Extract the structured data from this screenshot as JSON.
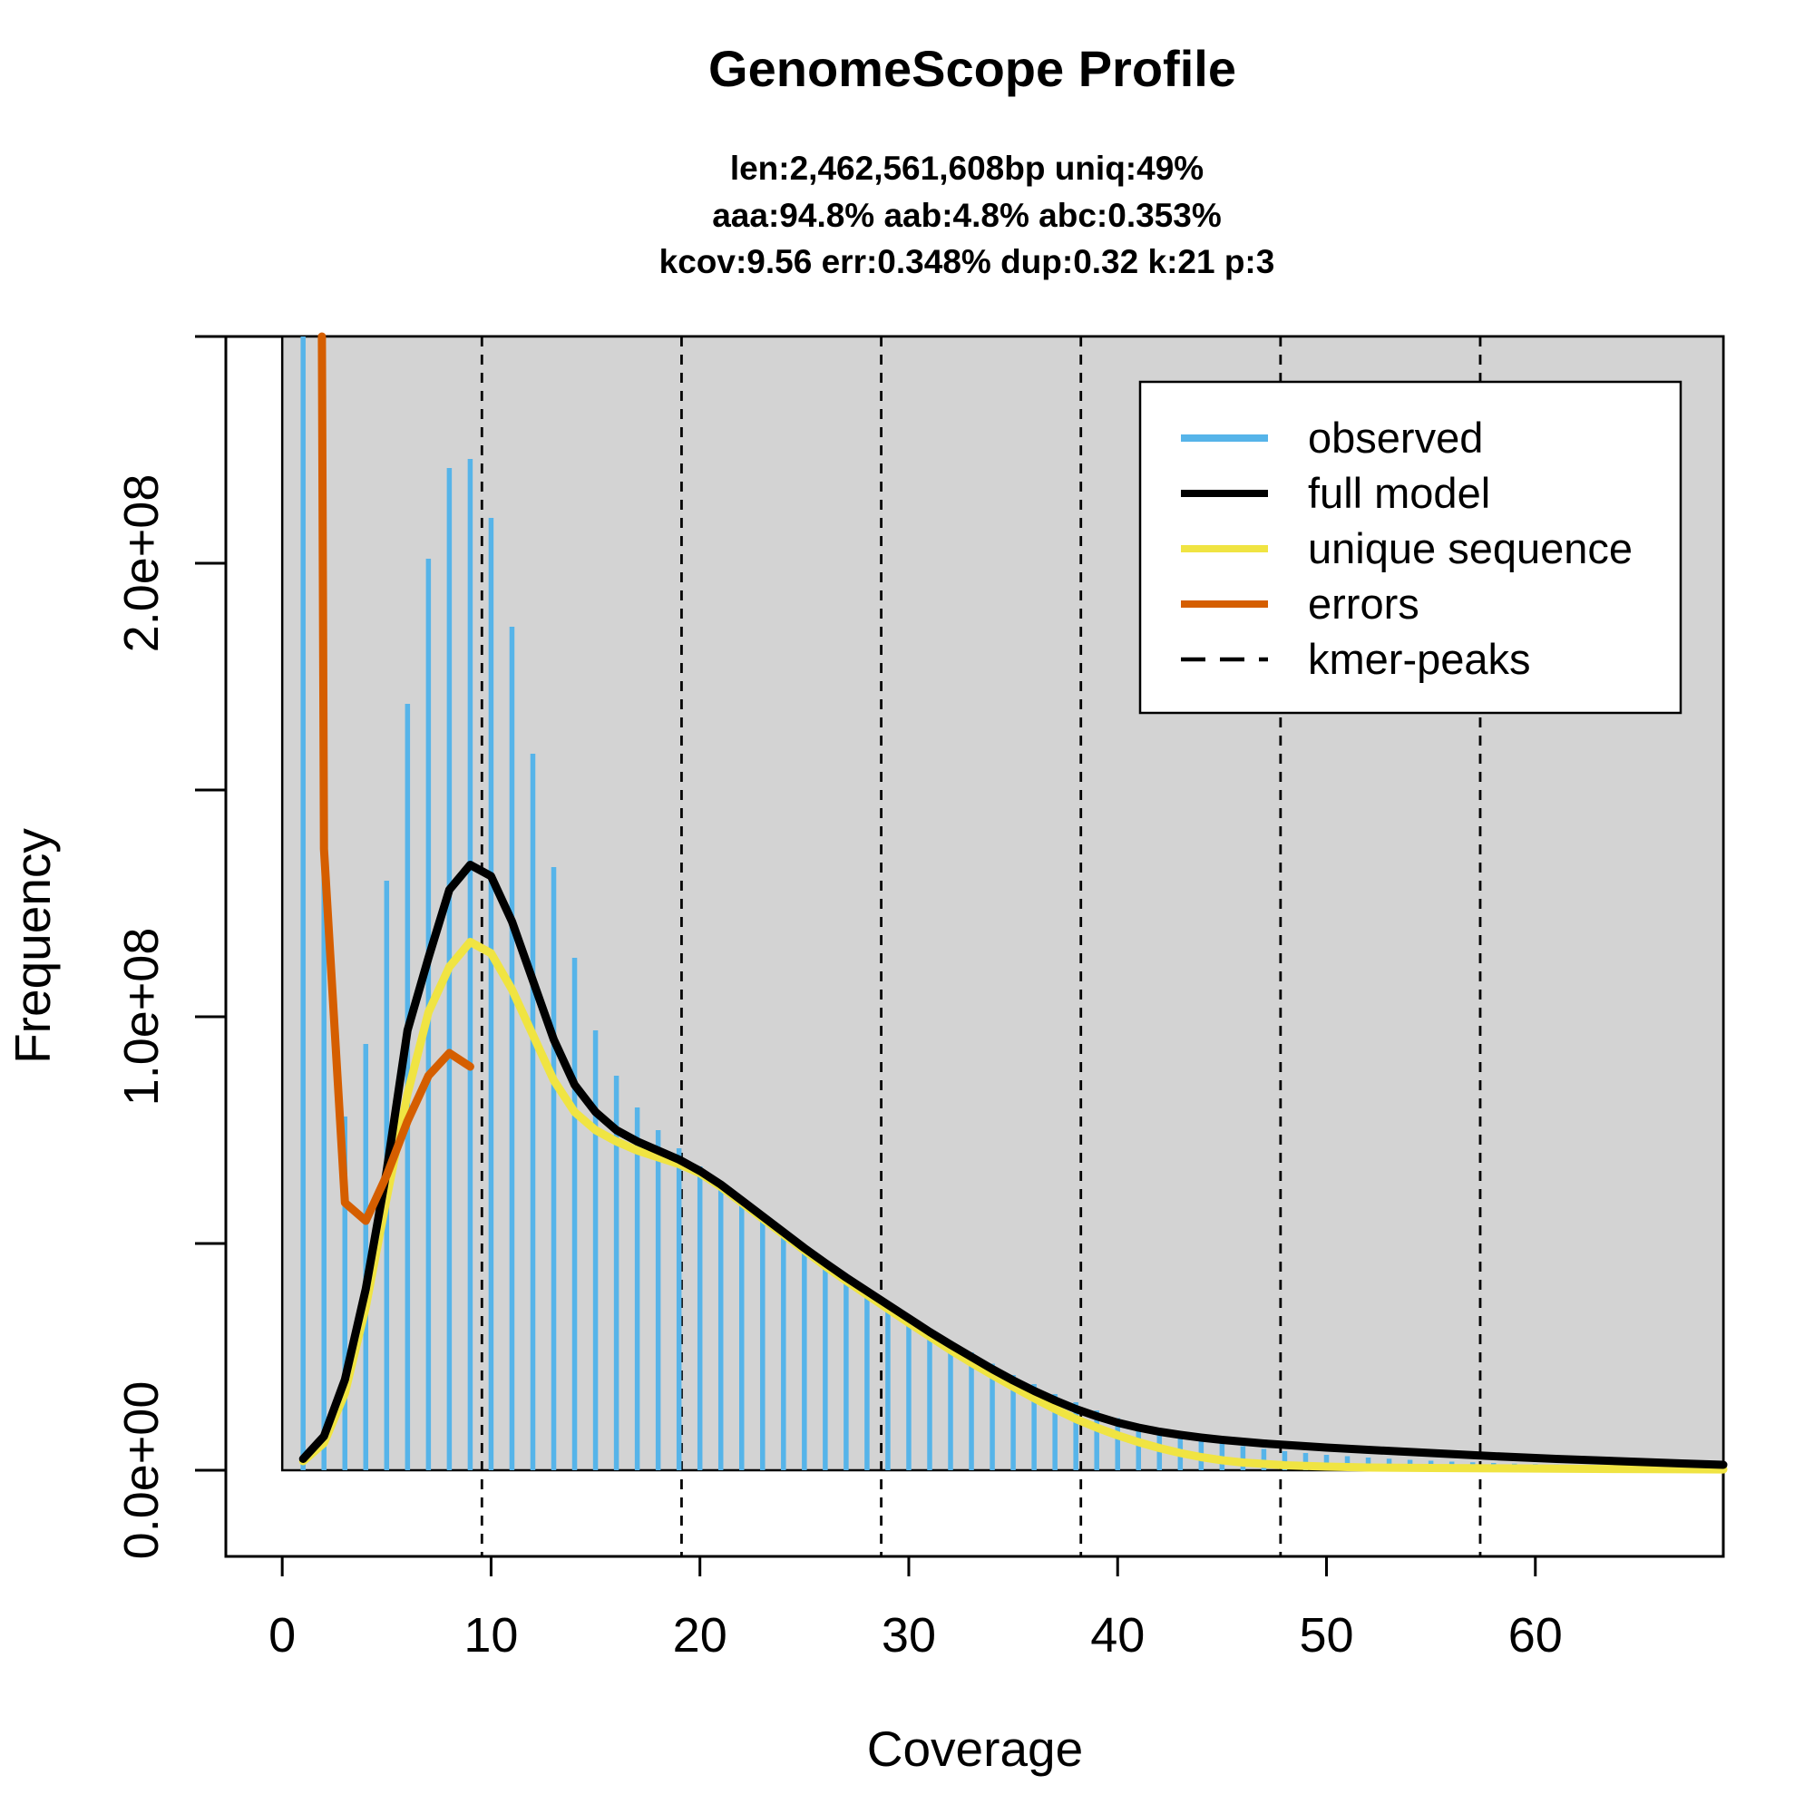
{
  "chart_data": {
    "type": "bar",
    "title": "GenomeScope Profile",
    "subtitle_lines": [
      "len:2,462,561,608bp uniq:49%",
      "aaa:94.8% aab:4.8% abc:0.353%",
      "kcov:9.56 err:0.348%  dup:0.32  k:21 p:3"
    ],
    "xlabel": "Coverage",
    "ylabel": "Frequency",
    "xlim": [
      -2.7,
      69
    ],
    "ylim": [
      -19000000,
      250000000
    ],
    "x_ticks": [
      0,
      10,
      20,
      30,
      40,
      50,
      60
    ],
    "x_tick_labels": [
      "0",
      "10",
      "20",
      "30",
      "40",
      "50",
      "60"
    ],
    "y_ticks": [
      0,
      50000000,
      100000000,
      150000000,
      200000000,
      250000000
    ],
    "y_tick_labels": [
      "0.0e+00",
      "",
      "1.0e+08",
      "",
      "2.0e+08",
      ""
    ],
    "background_color": "#d3d3d3",
    "legend_position": "top-right",
    "legend": [
      {
        "label": "observed",
        "color": "#56b4e9",
        "style": "solid"
      },
      {
        "label": "full model",
        "color": "#000000",
        "style": "solid"
      },
      {
        "label": "unique sequence",
        "color": "#f0e442",
        "style": "solid"
      },
      {
        "label": "errors",
        "color": "#d55e00",
        "style": "solid"
      },
      {
        "label": "kmer-peaks",
        "color": "#000000",
        "style": "dashed"
      }
    ],
    "kmer_peaks": [
      9.56,
      19.12,
      28.68,
      38.24,
      47.8,
      57.36
    ],
    "observed": {
      "x": [
        1,
        2,
        3,
        4,
        5,
        6,
        7,
        8,
        9,
        10,
        11,
        12,
        13,
        14,
        15,
        16,
        17,
        18,
        19,
        20,
        21,
        22,
        23,
        24,
        25,
        26,
        27,
        28,
        29,
        30,
        31,
        32,
        33,
        34,
        35,
        36,
        37,
        38,
        39,
        40,
        41,
        42,
        43,
        44,
        45,
        46,
        47,
        48,
        49,
        50,
        51,
        52,
        53,
        54,
        55,
        56,
        57,
        58,
        59,
        60,
        61,
        62,
        63,
        64,
        65,
        66,
        67,
        68,
        69
      ],
      "y": [
        260000000,
        185000000,
        78000000,
        94000000,
        130000000,
        169000000,
        201000000,
        221000000,
        223000000,
        210000000,
        186000000,
        158000000,
        133000000,
        113000000,
        97000000,
        87000000,
        80000000,
        75000000,
        71000000,
        67000000,
        63500000,
        60000000,
        56500000,
        53000000,
        49500000,
        46000000,
        43000000,
        40000000,
        37000000,
        34000000,
        31000000,
        28500000,
        26000000,
        23500000,
        21000000,
        19000000,
        16800000,
        15000000,
        13200000,
        11500000,
        10000000,
        8800000,
        7700000,
        6800000,
        6000000,
        5300000,
        4700000,
        4200000,
        3800000,
        3400000,
        3100000,
        2800000,
        2550000,
        2300000,
        2100000,
        1900000,
        1750000,
        1600000,
        1450000,
        1350000,
        1250000,
        1150000,
        1050000,
        980000,
        910000,
        850000,
        790000,
        740000,
        690000
      ]
    },
    "full_model": {
      "x": [
        1,
        2,
        3,
        4,
        5,
        6,
        7,
        8,
        9,
        10,
        11,
        12,
        13,
        14,
        15,
        16,
        17,
        18,
        19,
        20,
        21,
        22,
        23,
        24,
        25,
        26,
        27,
        28,
        29,
        30,
        31,
        32,
        33,
        34,
        35,
        36,
        37,
        38,
        39,
        40,
        41,
        42,
        43,
        44,
        45,
        46,
        47,
        48,
        49,
        50,
        52,
        55,
        58,
        61,
        64,
        67,
        69
      ],
      "y": [
        2500000,
        7500000,
        20000000,
        40000000,
        66000000,
        97000000,
        113000000,
        128000000,
        133500000,
        131000000,
        121000000,
        108000000,
        95000000,
        85000000,
        79000000,
        75000000,
        72500000,
        70500000,
        68500000,
        66000000,
        63000000,
        59500000,
        56000000,
        52500000,
        49000000,
        45700000,
        42500000,
        39500000,
        36500000,
        33500000,
        30500000,
        27700000,
        25000000,
        22300000,
        19800000,
        17500000,
        15400000,
        13500000,
        11900000,
        10500000,
        9400000,
        8500000,
        7800000,
        7200000,
        6700000,
        6300000,
        5900000,
        5600000,
        5300000,
        5000000,
        4500000,
        3800000,
        3100000,
        2500000,
        2000000,
        1500000,
        1200000
      ]
    },
    "unique_sequence": {
      "x": [
        1,
        2,
        3,
        4,
        5,
        6,
        7,
        8,
        9,
        10,
        11,
        12,
        13,
        14,
        15,
        16,
        17,
        18,
        19,
        20,
        21,
        22,
        23,
        24,
        25,
        26,
        27,
        28,
        29,
        30,
        31,
        32,
        33,
        34,
        35,
        36,
        37,
        38,
        39,
        40,
        41,
        42,
        43,
        44,
        45,
        46,
        48,
        50,
        52,
        55,
        58,
        61,
        64,
        67,
        69
      ],
      "y": [
        2000000,
        6000000,
        17000000,
        36000000,
        60000000,
        83000000,
        101000000,
        111000000,
        116500000,
        114000000,
        106000000,
        96000000,
        86000000,
        79000000,
        75000000,
        72500000,
        70500000,
        69000000,
        67500000,
        65500000,
        62500000,
        59000000,
        55500000,
        52000000,
        48500000,
        45000000,
        41800000,
        38700000,
        35600000,
        32500000,
        29500000,
        26500000,
        23700000,
        21000000,
        18400000,
        15900000,
        13500000,
        11300000,
        9400000,
        7700000,
        6200000,
        4900000,
        3800000,
        2900000,
        2200000,
        1700000,
        1100000,
        800000,
        600000,
        500000,
        420000,
        350000,
        280000,
        220000,
        180000
      ]
    },
    "errors": {
      "x": [
        1.9,
        2,
        3,
        4,
        5,
        6,
        7,
        8,
        9
      ],
      "y": [
        252000000,
        137000000,
        59000000,
        55000000,
        65000000,
        77000000,
        87000000,
        92000000,
        89000000
      ]
    }
  }
}
